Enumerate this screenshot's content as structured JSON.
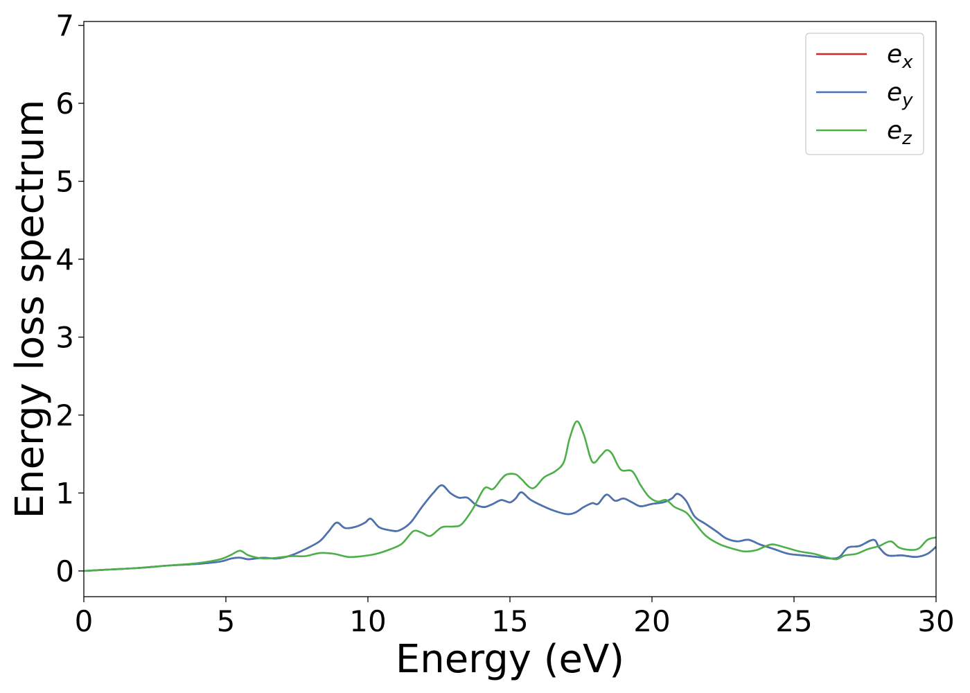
{
  "chart_data": {
    "type": "line",
    "title": "",
    "xlabel": "Energy (eV)",
    "ylabel": "Energy loss spectrum",
    "xlim": [
      0,
      30
    ],
    "ylim": [
      -0.33,
      7.05
    ],
    "xticks": [
      0,
      5,
      10,
      15,
      20,
      25,
      30
    ],
    "yticks": [
      0,
      1,
      2,
      3,
      4,
      5,
      6,
      7
    ],
    "grid": false,
    "legend_position": "top-right",
    "series": [
      {
        "name": "e_x",
        "legend_base": "e",
        "legend_sub": "x",
        "color": "#d62728",
        "points": [
          [
            0,
            0
          ],
          [
            1,
            0.02
          ],
          [
            2,
            0.04
          ],
          [
            3,
            0.07
          ],
          [
            4,
            0.09
          ],
          [
            4.8,
            0.12
          ],
          [
            5.2,
            0.16
          ],
          [
            5.5,
            0.17
          ],
          [
            5.8,
            0.15
          ],
          [
            6.3,
            0.17
          ],
          [
            6.8,
            0.16
          ],
          [
            7.3,
            0.2
          ],
          [
            7.8,
            0.28
          ],
          [
            8.3,
            0.38
          ],
          [
            8.6,
            0.5
          ],
          [
            8.9,
            0.62
          ],
          [
            9.2,
            0.55
          ],
          [
            9.6,
            0.57
          ],
          [
            9.9,
            0.62
          ],
          [
            10.1,
            0.67
          ],
          [
            10.4,
            0.56
          ],
          [
            10.8,
            0.52
          ],
          [
            11.1,
            0.52
          ],
          [
            11.5,
            0.62
          ],
          [
            11.9,
            0.82
          ],
          [
            12.3,
            1.0
          ],
          [
            12.6,
            1.1
          ],
          [
            12.9,
            1.0
          ],
          [
            13.2,
            0.94
          ],
          [
            13.5,
            0.94
          ],
          [
            13.8,
            0.85
          ],
          [
            14.1,
            0.82
          ],
          [
            14.4,
            0.86
          ],
          [
            14.7,
            0.91
          ],
          [
            15.0,
            0.88
          ],
          [
            15.2,
            0.93
          ],
          [
            15.4,
            1.01
          ],
          [
            15.7,
            0.92
          ],
          [
            16.0,
            0.86
          ],
          [
            16.5,
            0.78
          ],
          [
            17.0,
            0.73
          ],
          [
            17.3,
            0.75
          ],
          [
            17.6,
            0.82
          ],
          [
            17.9,
            0.87
          ],
          [
            18.1,
            0.86
          ],
          [
            18.4,
            0.98
          ],
          [
            18.7,
            0.9
          ],
          [
            19.0,
            0.93
          ],
          [
            19.3,
            0.88
          ],
          [
            19.6,
            0.83
          ],
          [
            20.0,
            0.86
          ],
          [
            20.4,
            0.88
          ],
          [
            20.7,
            0.93
          ],
          [
            20.9,
            0.99
          ],
          [
            21.2,
            0.9
          ],
          [
            21.5,
            0.7
          ],
          [
            21.9,
            0.6
          ],
          [
            22.3,
            0.5
          ],
          [
            22.6,
            0.42
          ],
          [
            23.0,
            0.38
          ],
          [
            23.4,
            0.4
          ],
          [
            23.8,
            0.34
          ],
          [
            24.3,
            0.28
          ],
          [
            24.8,
            0.22
          ],
          [
            25.3,
            0.2
          ],
          [
            25.8,
            0.18
          ],
          [
            26.3,
            0.16
          ],
          [
            26.6,
            0.18
          ],
          [
            26.9,
            0.3
          ],
          [
            27.3,
            0.32
          ],
          [
            27.8,
            0.4
          ],
          [
            28.0,
            0.3
          ],
          [
            28.3,
            0.2
          ],
          [
            28.8,
            0.2
          ],
          [
            29.3,
            0.18
          ],
          [
            29.7,
            0.22
          ],
          [
            30.0,
            0.31
          ]
        ]
      },
      {
        "name": "e_y",
        "legend_base": "e",
        "legend_sub": "y",
        "color": "#4575b4",
        "points": [
          [
            0,
            0
          ],
          [
            1,
            0.02
          ],
          [
            2,
            0.04
          ],
          [
            3,
            0.07
          ],
          [
            4,
            0.09
          ],
          [
            4.8,
            0.12
          ],
          [
            5.2,
            0.16
          ],
          [
            5.5,
            0.17
          ],
          [
            5.8,
            0.15
          ],
          [
            6.3,
            0.17
          ],
          [
            6.8,
            0.16
          ],
          [
            7.3,
            0.2
          ],
          [
            7.8,
            0.28
          ],
          [
            8.3,
            0.38
          ],
          [
            8.6,
            0.5
          ],
          [
            8.9,
            0.62
          ],
          [
            9.2,
            0.55
          ],
          [
            9.6,
            0.57
          ],
          [
            9.9,
            0.62
          ],
          [
            10.1,
            0.67
          ],
          [
            10.4,
            0.56
          ],
          [
            10.8,
            0.52
          ],
          [
            11.1,
            0.52
          ],
          [
            11.5,
            0.62
          ],
          [
            11.9,
            0.82
          ],
          [
            12.3,
            1.0
          ],
          [
            12.6,
            1.1
          ],
          [
            12.9,
            1.0
          ],
          [
            13.2,
            0.94
          ],
          [
            13.5,
            0.94
          ],
          [
            13.8,
            0.85
          ],
          [
            14.1,
            0.82
          ],
          [
            14.4,
            0.86
          ],
          [
            14.7,
            0.91
          ],
          [
            15.0,
            0.88
          ],
          [
            15.2,
            0.93
          ],
          [
            15.4,
            1.01
          ],
          [
            15.7,
            0.92
          ],
          [
            16.0,
            0.86
          ],
          [
            16.5,
            0.78
          ],
          [
            17.0,
            0.73
          ],
          [
            17.3,
            0.75
          ],
          [
            17.6,
            0.82
          ],
          [
            17.9,
            0.87
          ],
          [
            18.1,
            0.86
          ],
          [
            18.4,
            0.98
          ],
          [
            18.7,
            0.9
          ],
          [
            19.0,
            0.93
          ],
          [
            19.3,
            0.88
          ],
          [
            19.6,
            0.83
          ],
          [
            20.0,
            0.86
          ],
          [
            20.4,
            0.88
          ],
          [
            20.7,
            0.93
          ],
          [
            20.9,
            0.99
          ],
          [
            21.2,
            0.9
          ],
          [
            21.5,
            0.7
          ],
          [
            21.9,
            0.6
          ],
          [
            22.3,
            0.5
          ],
          [
            22.6,
            0.42
          ],
          [
            23.0,
            0.38
          ],
          [
            23.4,
            0.4
          ],
          [
            23.8,
            0.34
          ],
          [
            24.3,
            0.28
          ],
          [
            24.8,
            0.22
          ],
          [
            25.3,
            0.2
          ],
          [
            25.8,
            0.18
          ],
          [
            26.3,
            0.16
          ],
          [
            26.6,
            0.18
          ],
          [
            26.9,
            0.3
          ],
          [
            27.3,
            0.32
          ],
          [
            27.8,
            0.4
          ],
          [
            28.0,
            0.3
          ],
          [
            28.3,
            0.2
          ],
          [
            28.8,
            0.2
          ],
          [
            29.3,
            0.18
          ],
          [
            29.7,
            0.22
          ],
          [
            30.0,
            0.31
          ]
        ]
      },
      {
        "name": "e_z",
        "legend_base": "e",
        "legend_sub": "z",
        "color": "#4daf4a",
        "points": [
          [
            0,
            0
          ],
          [
            1,
            0.02
          ],
          [
            2,
            0.04
          ],
          [
            3,
            0.07
          ],
          [
            4,
            0.1
          ],
          [
            4.8,
            0.15
          ],
          [
            5.2,
            0.21
          ],
          [
            5.5,
            0.26
          ],
          [
            5.8,
            0.2
          ],
          [
            6.3,
            0.16
          ],
          [
            6.8,
            0.17
          ],
          [
            7.3,
            0.19
          ],
          [
            7.8,
            0.19
          ],
          [
            8.3,
            0.23
          ],
          [
            8.8,
            0.22
          ],
          [
            9.3,
            0.18
          ],
          [
            9.8,
            0.19
          ],
          [
            10.3,
            0.22
          ],
          [
            10.8,
            0.28
          ],
          [
            11.2,
            0.35
          ],
          [
            11.6,
            0.51
          ],
          [
            11.9,
            0.49
          ],
          [
            12.2,
            0.45
          ],
          [
            12.6,
            0.56
          ],
          [
            13.0,
            0.57
          ],
          [
            13.3,
            0.6
          ],
          [
            13.7,
            0.8
          ],
          [
            14.1,
            1.06
          ],
          [
            14.4,
            1.05
          ],
          [
            14.7,
            1.18
          ],
          [
            14.9,
            1.24
          ],
          [
            15.2,
            1.24
          ],
          [
            15.4,
            1.18
          ],
          [
            15.8,
            1.06
          ],
          [
            16.2,
            1.2
          ],
          [
            16.6,
            1.28
          ],
          [
            16.9,
            1.4
          ],
          [
            17.1,
            1.7
          ],
          [
            17.35,
            1.92
          ],
          [
            17.6,
            1.75
          ],
          [
            17.9,
            1.4
          ],
          [
            18.2,
            1.48
          ],
          [
            18.4,
            1.55
          ],
          [
            18.6,
            1.5
          ],
          [
            18.9,
            1.3
          ],
          [
            19.3,
            1.28
          ],
          [
            19.6,
            1.1
          ],
          [
            19.9,
            0.95
          ],
          [
            20.2,
            0.89
          ],
          [
            20.5,
            0.91
          ],
          [
            20.8,
            0.82
          ],
          [
            21.2,
            0.75
          ],
          [
            21.5,
            0.62
          ],
          [
            21.9,
            0.45
          ],
          [
            22.4,
            0.34
          ],
          [
            23.0,
            0.27
          ],
          [
            23.3,
            0.25
          ],
          [
            23.7,
            0.27
          ],
          [
            24.2,
            0.34
          ],
          [
            24.7,
            0.3
          ],
          [
            25.2,
            0.25
          ],
          [
            25.7,
            0.22
          ],
          [
            26.2,
            0.17
          ],
          [
            26.5,
            0.15
          ],
          [
            26.8,
            0.2
          ],
          [
            27.2,
            0.22
          ],
          [
            27.6,
            0.28
          ],
          [
            28.0,
            0.32
          ],
          [
            28.4,
            0.38
          ],
          [
            28.7,
            0.3
          ],
          [
            29.1,
            0.27
          ],
          [
            29.4,
            0.29
          ],
          [
            29.7,
            0.4
          ],
          [
            30.0,
            0.43
          ]
        ]
      }
    ]
  }
}
